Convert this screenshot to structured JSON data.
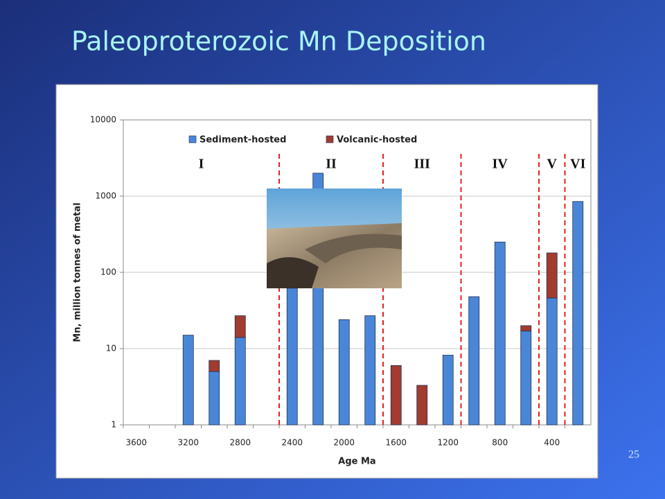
{
  "slide_title": "Paleoproterozoic Mn Deposition",
  "page_number": "25",
  "chart_data": {
    "type": "bar",
    "stacked": true,
    "log_scale": true,
    "grid": true,
    "xlabel": "Age Ma",
    "ylabel": "Mn, million tonnes of metal",
    "categories": [
      "3600",
      null,
      "3200",
      null,
      "2800",
      null,
      "2400",
      null,
      "2000",
      null,
      "1600",
      null,
      "1200",
      null,
      "800",
      null,
      "400",
      null
    ],
    "series": [
      {
        "name": "Sediment-hosted",
        "color": "#4a86d8",
        "values": [
          null,
          null,
          15,
          5,
          14,
          null,
          62,
          2000,
          24,
          27,
          null,
          null,
          8.2,
          48,
          250,
          17,
          46,
          850
        ]
      },
      {
        "name": "Volcanic-hosted",
        "color": "#a23b30",
        "values": [
          null,
          null,
          null,
          2,
          13,
          null,
          null,
          null,
          null,
          null,
          6,
          3.3,
          null,
          null,
          null,
          3,
          134,
          null
        ]
      }
    ],
    "ylim": [
      1,
      10000
    ],
    "yticks": [
      1,
      10,
      100,
      1000,
      10000
    ],
    "age_start": 3600,
    "age_step": 200,
    "dividers": [
      2500,
      1700,
      1100,
      500,
      300
    ],
    "periods": [
      {
        "label": "I",
        "age": 3100
      },
      {
        "label": "II",
        "age": 2100
      },
      {
        "label": "III",
        "age": 1400
      },
      {
        "label": "IV",
        "age": 800
      },
      {
        "label": "V",
        "age": 400
      },
      {
        "label": "VI",
        "age": 200
      }
    ]
  }
}
